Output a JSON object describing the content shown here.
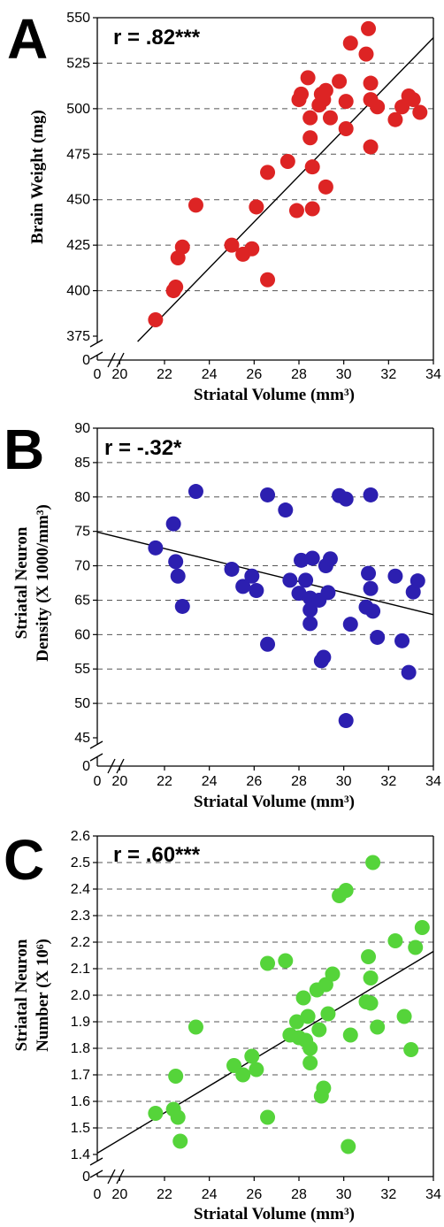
{
  "chart_data": [
    {
      "type": "scatter",
      "panel": "A",
      "annotation": "r = .82***",
      "xlabel": "Striatal Volume (mm³)",
      "ylabel": "Brain Weight (mg)",
      "xlim": [
        0,
        34
      ],
      "ylim_break": [
        0,
        375
      ],
      "ylim": [
        375,
        550
      ],
      "x_ticks": [
        "0",
        "20",
        "22",
        "24",
        "26",
        "28",
        "30",
        "32",
        "34"
      ],
      "y_ticks": [
        "0",
        "375",
        "400",
        "425",
        "450",
        "475",
        "500",
        "525",
        "550"
      ],
      "grid": "horizontal dashed",
      "color": "#dd2424",
      "fit_line": [
        [
          20.8,
          372
        ],
        [
          34.0,
          539
        ]
      ],
      "points": [
        [
          21.6,
          384
        ],
        [
          22.4,
          400
        ],
        [
          22.5,
          402
        ],
        [
          22.6,
          418
        ],
        [
          22.8,
          424
        ],
        [
          23.4,
          447
        ],
        [
          25.0,
          425
        ],
        [
          25.5,
          420
        ],
        [
          25.9,
          423
        ],
        [
          26.1,
          446
        ],
        [
          26.6,
          465
        ],
        [
          26.6,
          406
        ],
        [
          27.5,
          471
        ],
        [
          27.9,
          444
        ],
        [
          28.0,
          505
        ],
        [
          28.1,
          508
        ],
        [
          28.4,
          517
        ],
        [
          28.5,
          495
        ],
        [
          28.5,
          484
        ],
        [
          28.6,
          468
        ],
        [
          28.6,
          445
        ],
        [
          28.9,
          502
        ],
        [
          29.0,
          508
        ],
        [
          29.1,
          505
        ],
        [
          29.2,
          510
        ],
        [
          29.2,
          457
        ],
        [
          29.4,
          495
        ],
        [
          29.8,
          515
        ],
        [
          30.1,
          504
        ],
        [
          30.1,
          489
        ],
        [
          30.3,
          536
        ],
        [
          31.0,
          530
        ],
        [
          31.1,
          544
        ],
        [
          31.2,
          514
        ],
        [
          31.2,
          505
        ],
        [
          31.2,
          479
        ],
        [
          31.5,
          501
        ],
        [
          32.3,
          494
        ],
        [
          32.6,
          501
        ],
        [
          32.9,
          507
        ],
        [
          33.1,
          505
        ],
        [
          33.4,
          498
        ]
      ]
    },
    {
      "type": "scatter",
      "panel": "B",
      "annotation": "r = -.32*",
      "xlabel": "Striatal Volume (mm³)",
      "ylabel": "Striatal Neuron\nDensity (X 1000/mm³)",
      "xlim": [
        0,
        34
      ],
      "ylim_break": [
        0,
        45
      ],
      "ylim": [
        45,
        90
      ],
      "x_ticks": [
        "0",
        "20",
        "22",
        "24",
        "26",
        "28",
        "30",
        "32",
        "34"
      ],
      "y_ticks": [
        "0",
        "45",
        "50",
        "55",
        "60",
        "65",
        "70",
        "75",
        "80",
        "85",
        "90"
      ],
      "grid": "horizontal dashed",
      "color": "#2c1fb0",
      "fit_line": [
        [
          19.0,
          74.9
        ],
        [
          34.0,
          62.9
        ]
      ],
      "points": [
        [
          21.6,
          72.6
        ],
        [
          22.4,
          76.1
        ],
        [
          22.5,
          70.6
        ],
        [
          22.6,
          68.5
        ],
        [
          22.8,
          64.1
        ],
        [
          23.4,
          80.8
        ],
        [
          25.0,
          69.5
        ],
        [
          25.5,
          67.0
        ],
        [
          25.9,
          68.5
        ],
        [
          26.1,
          66.4
        ],
        [
          26.6,
          80.3
        ],
        [
          26.6,
          58.6
        ],
        [
          27.4,
          78.1
        ],
        [
          27.6,
          67.9
        ],
        [
          28.0,
          66.0
        ],
        [
          28.1,
          70.8
        ],
        [
          28.3,
          67.9
        ],
        [
          28.5,
          65.3
        ],
        [
          28.5,
          63.6
        ],
        [
          28.5,
          61.6
        ],
        [
          28.6,
          71.1
        ],
        [
          28.9,
          65.0
        ],
        [
          29.0,
          56.2
        ],
        [
          29.1,
          56.7
        ],
        [
          29.2,
          70.0
        ],
        [
          29.3,
          66.1
        ],
        [
          29.4,
          71.0
        ],
        [
          29.8,
          80.2
        ],
        [
          30.1,
          79.7
        ],
        [
          30.1,
          47.5
        ],
        [
          30.3,
          61.5
        ],
        [
          31.0,
          64.0
        ],
        [
          31.1,
          68.9
        ],
        [
          31.2,
          66.7
        ],
        [
          31.2,
          80.3
        ],
        [
          31.3,
          63.4
        ],
        [
          31.5,
          59.6
        ],
        [
          32.3,
          68.5
        ],
        [
          32.6,
          59.1
        ],
        [
          32.9,
          54.5
        ],
        [
          33.1,
          66.2
        ],
        [
          33.3,
          67.8
        ]
      ]
    },
    {
      "type": "scatter",
      "panel": "C",
      "annotation": "r = .60***",
      "xlabel": "Striatal Volume (mm³)",
      "ylabel": "Striatal Neuron\nNumber (X 10⁶)",
      "xlim": [
        0,
        34
      ],
      "ylim_break": [
        0,
        1.4
      ],
      "ylim": [
        1.4,
        2.6
      ],
      "x_ticks": [
        "0",
        "20",
        "22",
        "24",
        "26",
        "28",
        "30",
        "32",
        "34"
      ],
      "y_ticks": [
        "0",
        "1.4",
        "1.5",
        "1.6",
        "1.7",
        "1.8",
        "1.9",
        "2.0",
        "2.1",
        "2.2",
        "2.3",
        "2.4",
        "2.5",
        "2.6"
      ],
      "grid": "horizontal dashed",
      "color": "#55d43a",
      "fit_line": [
        [
          19.0,
          1.405
        ],
        [
          34.0,
          2.165
        ]
      ],
      "points": [
        [
          21.6,
          1.555
        ],
        [
          22.4,
          1.57
        ],
        [
          22.5,
          1.695
        ],
        [
          22.6,
          1.54
        ],
        [
          22.7,
          1.45
        ],
        [
          23.4,
          1.88
        ],
        [
          25.1,
          1.735
        ],
        [
          25.5,
          1.7
        ],
        [
          25.9,
          1.77
        ],
        [
          26.1,
          1.72
        ],
        [
          26.6,
          2.12
        ],
        [
          26.6,
          1.54
        ],
        [
          27.4,
          2.13
        ],
        [
          27.6,
          1.85
        ],
        [
          27.9,
          1.9
        ],
        [
          28.0,
          1.84
        ],
        [
          28.2,
          1.99
        ],
        [
          28.3,
          1.83
        ],
        [
          28.4,
          1.92
        ],
        [
          28.5,
          1.8
        ],
        [
          28.5,
          1.745
        ],
        [
          28.8,
          2.02
        ],
        [
          28.9,
          1.87
        ],
        [
          29.0,
          1.62
        ],
        [
          29.1,
          1.65
        ],
        [
          29.2,
          2.04
        ],
        [
          29.3,
          1.93
        ],
        [
          29.5,
          2.08
        ],
        [
          29.8,
          2.375
        ],
        [
          30.1,
          2.395
        ],
        [
          30.2,
          1.43
        ],
        [
          30.3,
          1.85
        ],
        [
          31.0,
          1.975
        ],
        [
          31.1,
          2.145
        ],
        [
          31.2,
          2.065
        ],
        [
          31.2,
          1.97
        ],
        [
          31.3,
          2.5
        ],
        [
          31.5,
          1.88
        ],
        [
          32.3,
          2.205
        ],
        [
          32.7,
          1.92
        ],
        [
          33.0,
          1.795
        ],
        [
          33.2,
          2.18
        ],
        [
          33.5,
          2.255
        ]
      ]
    }
  ]
}
